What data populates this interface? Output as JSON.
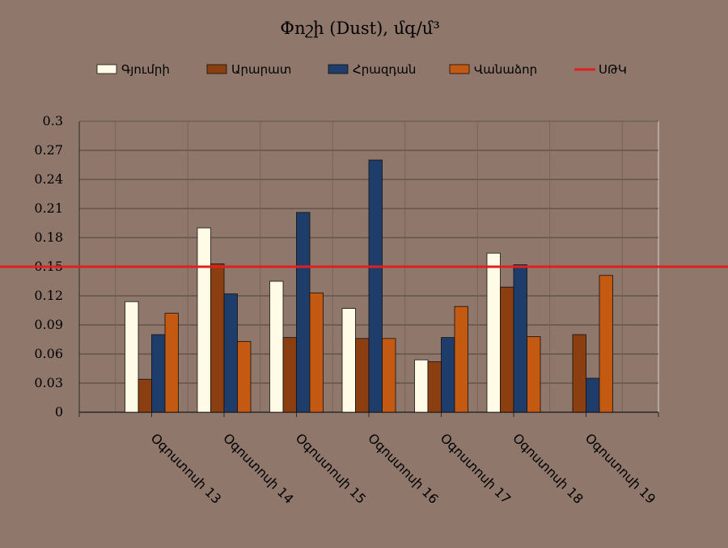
{
  "chart_data": {
    "type": "bar",
    "title": "Փոշի (Dust), մգ/մ³",
    "categories": [
      "Օգոստոսի 13",
      "Օգոստոսի 14",
      "Օգոստոսի 15",
      "Օգոստոսի 16",
      "Օգոստոսի 17",
      "Օգոստոսի 18",
      "Օգոստոսի 19"
    ],
    "series": [
      {
        "name": "Գյումրի",
        "color": "#fffbe6",
        "values": [
          0.114,
          0.19,
          0.135,
          0.107,
          0.054,
          0.164,
          null
        ]
      },
      {
        "name": "Արարատ",
        "color": "#8b3e10",
        "values": [
          0.034,
          0.153,
          0.077,
          0.076,
          0.052,
          0.129,
          0.08
        ]
      },
      {
        "name": "Հրազդան",
        "color": "#1f3d6b",
        "values": [
          0.08,
          0.122,
          0.206,
          0.26,
          0.077,
          0.152,
          0.035
        ]
      },
      {
        "name": "Վանաձոր",
        "color": "#c45a11",
        "values": [
          0.102,
          0.073,
          0.123,
          0.076,
          0.109,
          0.078,
          0.141
        ]
      }
    ],
    "reference_line": {
      "name": "ՍԹԿ",
      "value": 0.15,
      "color": "#e41e1e"
    },
    "ylim": [
      0,
      0.3
    ],
    "yticks": [
      "0",
      "0.03",
      "0.06",
      "0.09",
      "0.12",
      "0.15",
      "0.18",
      "0.21",
      "0.24",
      "0.27",
      "0.3"
    ],
    "xlabel": "",
    "ylabel": "",
    "grid": true,
    "legend_position": "top"
  }
}
